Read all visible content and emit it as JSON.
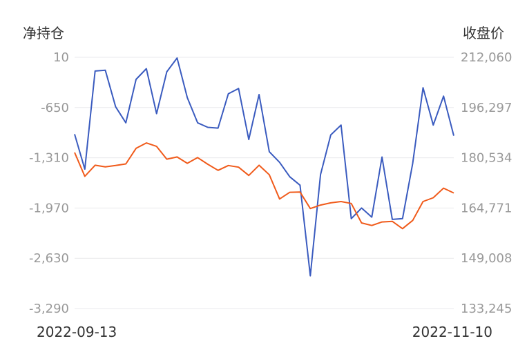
{
  "chart_data": {
    "type": "line",
    "left_axis_title": "净持仓",
    "right_axis_title": "收盘价",
    "x_start_label": "2022-09-13",
    "x_end_label": "2022-11-10",
    "left_ticks": [
      "10",
      "-650",
      "-1,310",
      "-1,970",
      "-2,630",
      "-3,290"
    ],
    "right_ticks": [
      "212,060",
      "196,297",
      "180,534",
      "164,771",
      "149,008",
      "133,245"
    ],
    "ylim_left": [
      -3290,
      10
    ],
    "ylim_right": [
      133245,
      212060
    ],
    "grid": true,
    "colors": {
      "net_position": "#3a5bbf",
      "close_price": "#f05a1a",
      "grid": "#e8e8ec"
    },
    "series": [
      {
        "key": "net_position",
        "axis": "left",
        "values": [
          -1000,
          -1460,
          -170,
          -160,
          -640,
          -850,
          -280,
          -140,
          -730,
          -180,
          0,
          -520,
          -850,
          -910,
          -920,
          -470,
          -400,
          -1070,
          -480,
          -1230,
          -1370,
          -1560,
          -1670,
          -2860,
          -1530,
          -1010,
          -880,
          -2110,
          -1970,
          -2090,
          -1300,
          -2120,
          -2110,
          -1380,
          -390,
          -880,
          -500,
          -1020
        ]
      },
      {
        "key": "close_price",
        "axis": "right",
        "values": [
          182200,
          174700,
          178200,
          177700,
          178100,
          178600,
          183500,
          185200,
          184100,
          180100,
          180800,
          178800,
          180600,
          178500,
          176600,
          178100,
          177600,
          175000,
          178200,
          175200,
          167600,
          169700,
          169800,
          164600,
          165700,
          166400,
          166800,
          166200,
          160100,
          159300,
          160400,
          160600,
          158300,
          160900,
          166800,
          168000,
          171000,
          169500
        ]
      }
    ]
  }
}
